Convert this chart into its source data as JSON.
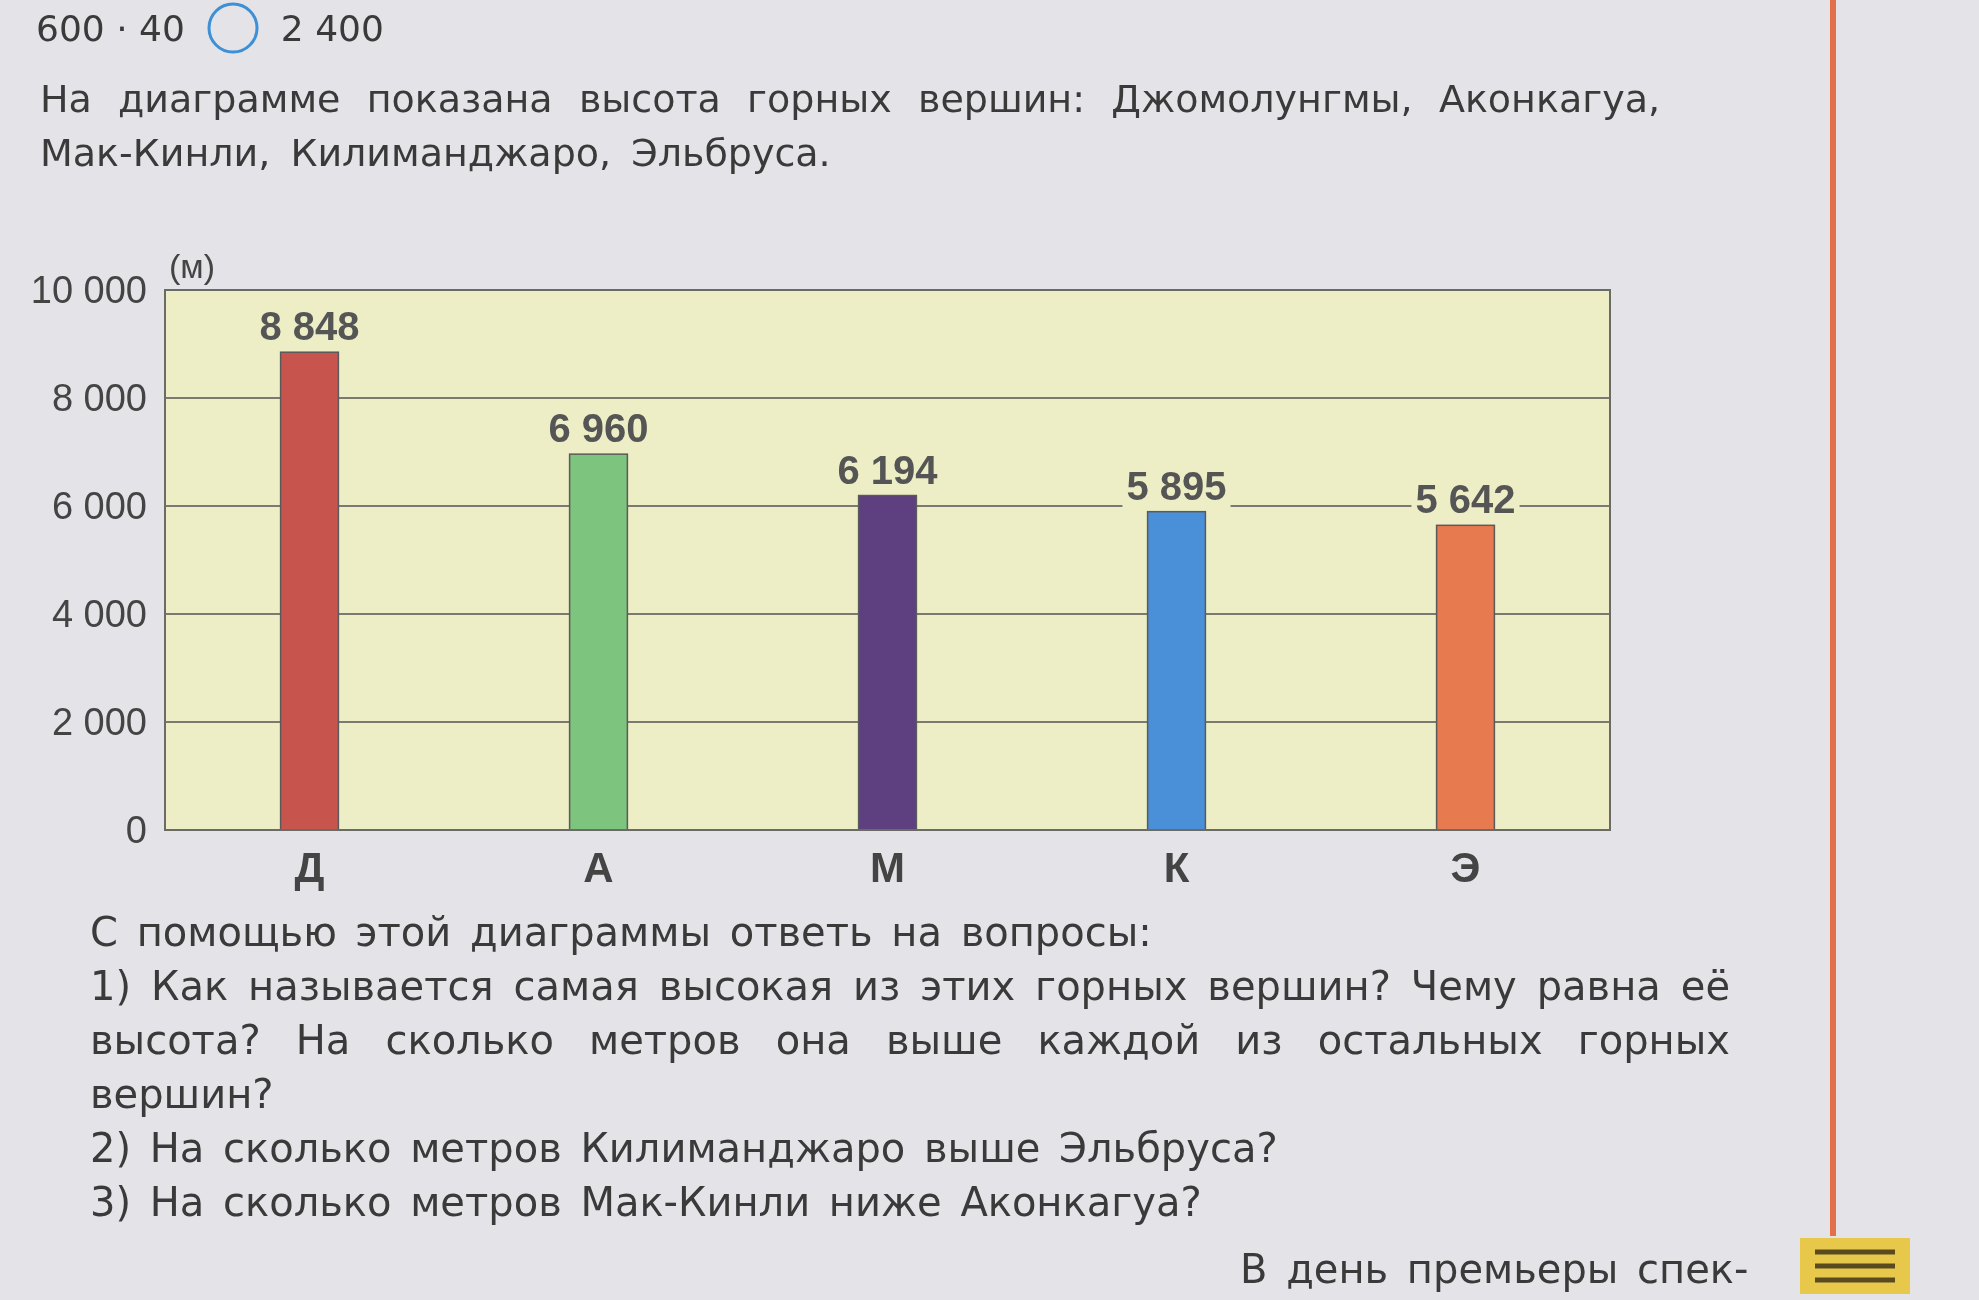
{
  "chart_data": {
    "type": "bar",
    "title": "На диаграмме показана высота горных вершин: Джомолунгмы, Аконкагуа, Мак-Кинли, Килиманджаро, Эльбруса.",
    "ylabel": "(м)",
    "categories": [
      "Д",
      "А",
      "М",
      "К",
      "Э"
    ],
    "values": [
      8848,
      6960,
      6194,
      5895,
      5642
    ],
    "value_labels": [
      "8 848",
      "6 960",
      "6 194",
      "5 895",
      "5 642"
    ],
    "colors": [
      "#c8554d",
      "#7dc47f",
      "#5e3f80",
      "#4a90d8",
      "#e87a50"
    ],
    "ylim": [
      0,
      10000
    ],
    "yticks": [
      0,
      {
        "value": 2000,
        "label": "2 000"
      },
      {
        "value": 4000,
        "label": "4 000"
      },
      {
        "value": 6000,
        "label": "6 000"
      },
      {
        "value": 8000,
        "label": "8 000"
      },
      {
        "value": 10000,
        "label": "10 000"
      }
    ],
    "grid": "y",
    "annotations": [
      "600 · 40",
      "2 400",
      "С помощью этой диаграммы ответь на вопросы:",
      "1) Как называется самая высокая из этих горных вершин? Чему равна её высота? На сколько метров она выше каждой из остальных горных вершин?",
      "2) На сколько метров Килиманджаро выше Эльбруса?",
      "3) На сколько метров Мак-Кинли ниже Аконкагуа?",
      "В день премьеры спек-"
    ]
  }
}
